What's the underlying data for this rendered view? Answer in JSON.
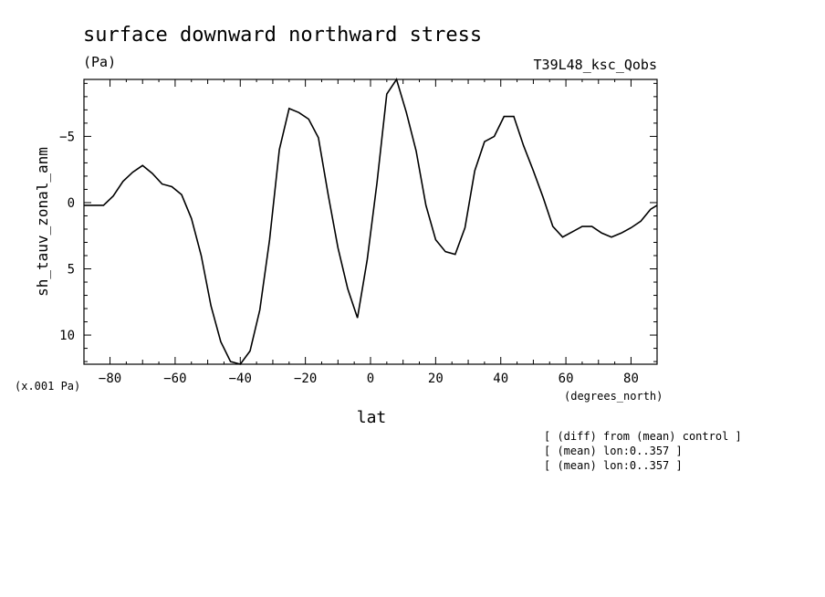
{
  "chart_data": {
    "type": "line",
    "title": "surface downward northward stress",
    "units": "(Pa)",
    "run_label": "T39L48_ksc_Qobs",
    "xlabel": "lat",
    "xunits": "(degrees_north)",
    "ylabel": "sh_tauv_zonal_anm",
    "yscale_label": "(x.001 Pa)",
    "xlim": [
      -88,
      88
    ],
    "ylim": [
      -9.3,
      12.2
    ],
    "y_axis_inverted": true,
    "grid": false,
    "x_ticks": [
      -80,
      -60,
      -40,
      -20,
      0,
      20,
      40,
      60,
      80
    ],
    "y_ticks": [
      -5,
      0,
      5,
      10
    ],
    "notes": [
      "[ (diff) from (mean) control ]",
      "[ (mean) lon:0..357 ]",
      "[ (mean) lon:0..357 ]"
    ],
    "series": [
      {
        "x": [
          -88,
          -82,
          -79,
          -76,
          -73,
          -70,
          -67,
          -64,
          -61,
          -58,
          -55,
          -52,
          -49,
          -46,
          -43,
          -40,
          -37,
          -34,
          -31,
          -28,
          -25,
          -22,
          -19,
          -16,
          -13,
          -10,
          -7,
          -4,
          -1,
          2,
          5,
          8,
          11,
          14,
          17,
          20,
          23,
          26,
          29,
          32,
          35,
          38,
          41,
          44,
          47,
          50,
          53,
          56,
          59,
          62,
          65,
          68,
          71,
          74,
          77,
          80,
          83,
          86,
          88
        ],
        "y": [
          0.2,
          0.2,
          -0.5,
          -1.6,
          -2.3,
          -2.8,
          -2.2,
          -1.4,
          -1.2,
          -0.6,
          1.2,
          4.0,
          7.8,
          10.5,
          12.0,
          12.2,
          11.2,
          8.1,
          2.8,
          -4.0,
          -7.1,
          -6.8,
          -6.3,
          -4.9,
          -0.6,
          3.4,
          6.5,
          8.7,
          4.3,
          -1.5,
          -8.2,
          -9.3,
          -6.8,
          -3.9,
          0.2,
          2.8,
          3.7,
          3.9,
          1.9,
          -2.4,
          -4.6,
          -5.0,
          -6.5,
          -6.5,
          -4.3,
          -2.4,
          -0.4,
          1.8,
          2.6,
          2.2,
          1.8,
          1.8,
          2.3,
          2.6,
          2.3,
          1.9,
          1.4,
          0.5,
          0.2
        ]
      }
    ]
  }
}
